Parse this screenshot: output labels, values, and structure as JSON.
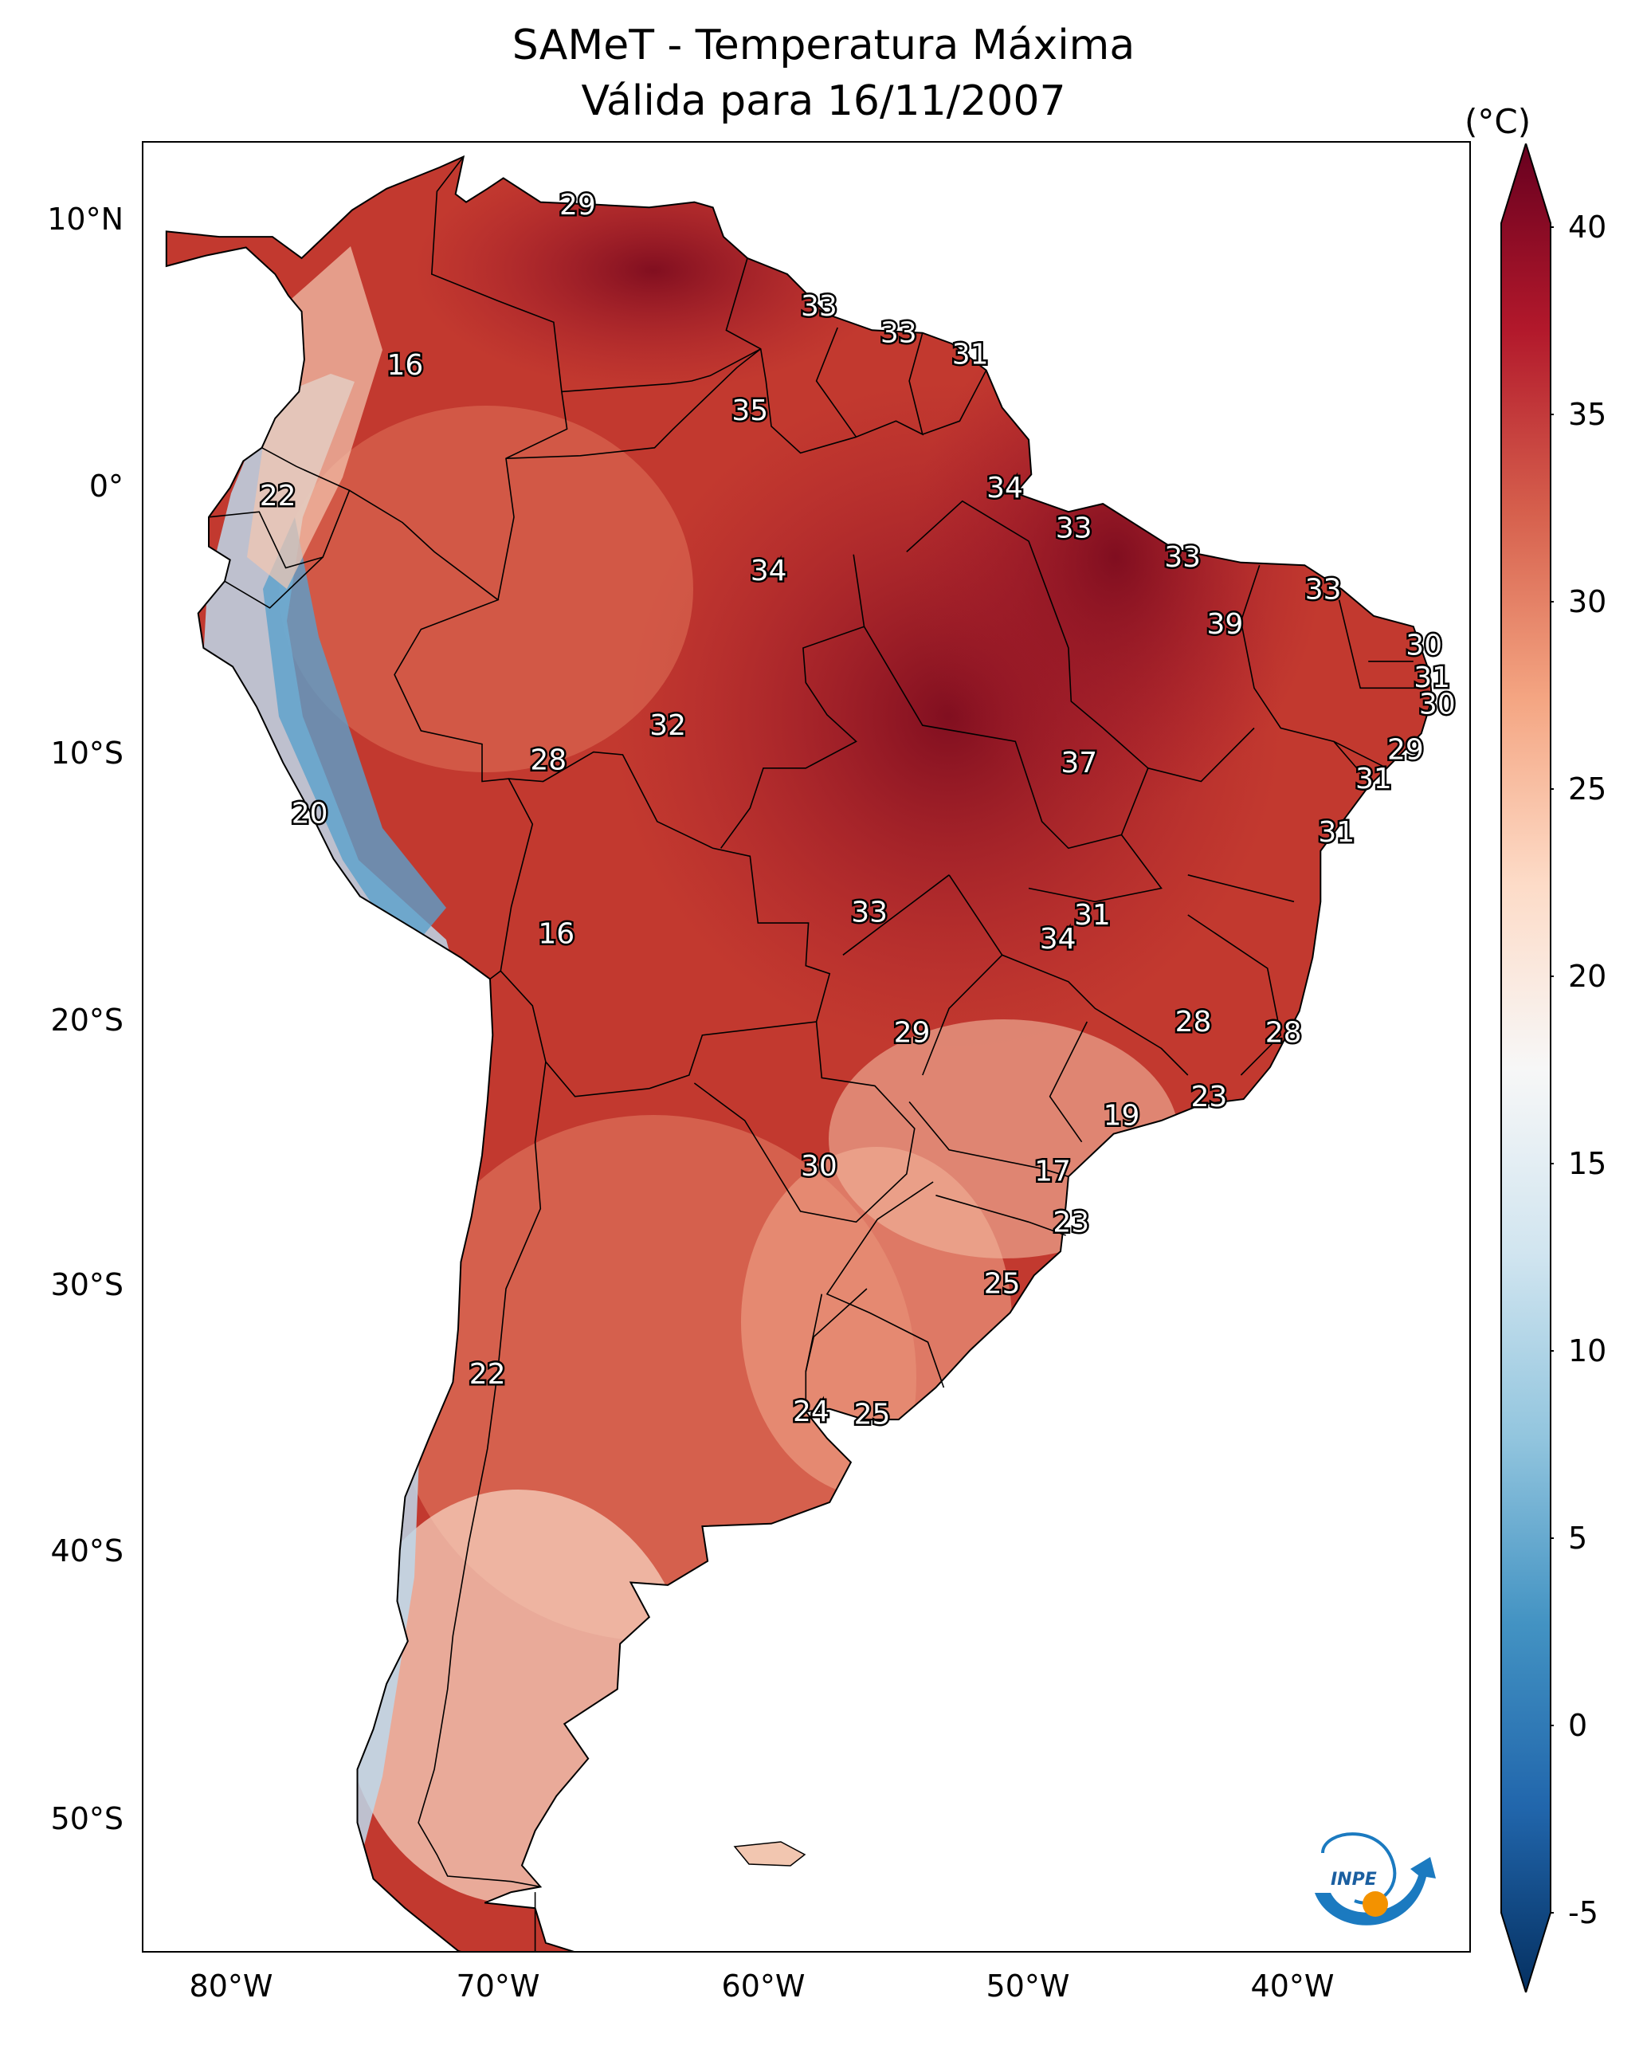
{
  "title": {
    "line1": "SAMeT - Temperatura Máxima",
    "line2": "Válida para 16/11/2007"
  },
  "axes": {
    "lat_ticks": [
      "10°N",
      "0°",
      "10°S",
      "20°S",
      "30°S",
      "40°S",
      "50°S"
    ],
    "lon_ticks": [
      "80°W",
      "70°W",
      "60°W",
      "50°W",
      "40°W"
    ]
  },
  "colorbar": {
    "unit": "(°C)",
    "ticks": [
      "40",
      "35",
      "30",
      "25",
      "20",
      "15",
      "10",
      "5",
      "0",
      "-5"
    ],
    "min": -5,
    "max": 40,
    "colors": [
      "#053061",
      "#2166ac",
      "#4393c3",
      "#92c5de",
      "#d1e5f0",
      "#f7f7f7",
      "#fddbc7",
      "#f4a582",
      "#d6604d",
      "#b2182b",
      "#67001f"
    ]
  },
  "logo": {
    "text": "INPE"
  },
  "map_labels": [
    {
      "value": "29",
      "lon": -67,
      "lat": 10.6
    },
    {
      "value": "33",
      "lon": -57.9,
      "lat": 6.8
    },
    {
      "value": "33",
      "lon": -54.9,
      "lat": 5.8
    },
    {
      "value": "31",
      "lon": -52.2,
      "lat": 5
    },
    {
      "value": "16",
      "lon": -73.5,
      "lat": 4.6
    },
    {
      "value": "35",
      "lon": -60.5,
      "lat": 2.9
    },
    {
      "value": "34",
      "lon": -50.9,
      "lat": 0
    },
    {
      "value": "22",
      "lon": -78.3,
      "lat": -0.3
    },
    {
      "value": "33",
      "lon": -48.3,
      "lat": -1.5
    },
    {
      "value": "33",
      "lon": -44.2,
      "lat": -2.6
    },
    {
      "value": "34",
      "lon": -59.8,
      "lat": -3.1
    },
    {
      "value": "33",
      "lon": -38.9,
      "lat": -3.8
    },
    {
      "value": "39",
      "lon": -42.6,
      "lat": -5.1
    },
    {
      "value": "30",
      "lon": -35.1,
      "lat": -5.9
    },
    {
      "value": "31",
      "lon": -34.8,
      "lat": -7.1
    },
    {
      "value": "30",
      "lon": -34.6,
      "lat": -8.1
    },
    {
      "value": "32",
      "lon": -63.6,
      "lat": -8.9
    },
    {
      "value": "28",
      "lon": -68.1,
      "lat": -10.2
    },
    {
      "value": "37",
      "lon": -48.1,
      "lat": -10.3
    },
    {
      "value": "29",
      "lon": -35.8,
      "lat": -9.8
    },
    {
      "value": "31",
      "lon": -37,
      "lat": -10.9
    },
    {
      "value": "20",
      "lon": -77.1,
      "lat": -12.2
    },
    {
      "value": "31",
      "lon": -38.4,
      "lat": -12.9
    },
    {
      "value": "33",
      "lon": -56,
      "lat": -15.9
    },
    {
      "value": "31",
      "lon": -47.6,
      "lat": -16
    },
    {
      "value": "34",
      "lon": -48.9,
      "lat": -16.9
    },
    {
      "value": "16",
      "lon": -67.8,
      "lat": -16.7
    },
    {
      "value": "28",
      "lon": -43.8,
      "lat": -20
    },
    {
      "value": "29",
      "lon": -54.4,
      "lat": -20.4
    },
    {
      "value": "28",
      "lon": -40.4,
      "lat": -20.4
    },
    {
      "value": "23",
      "lon": -43.2,
      "lat": -22.8
    },
    {
      "value": "19",
      "lon": -46.5,
      "lat": -23.5
    },
    {
      "value": "30",
      "lon": -57.9,
      "lat": -25.4
    },
    {
      "value": "17",
      "lon": -49.1,
      "lat": -25.6
    },
    {
      "value": "23",
      "lon": -48.4,
      "lat": -27.5
    },
    {
      "value": "25",
      "lon": -51,
      "lat": -29.8
    },
    {
      "value": "22",
      "lon": -70.4,
      "lat": -33.2
    },
    {
      "value": "24",
      "lon": -58.2,
      "lat": -34.6
    },
    {
      "value": "25",
      "lon": -55.9,
      "lat": -34.7
    }
  ]
}
